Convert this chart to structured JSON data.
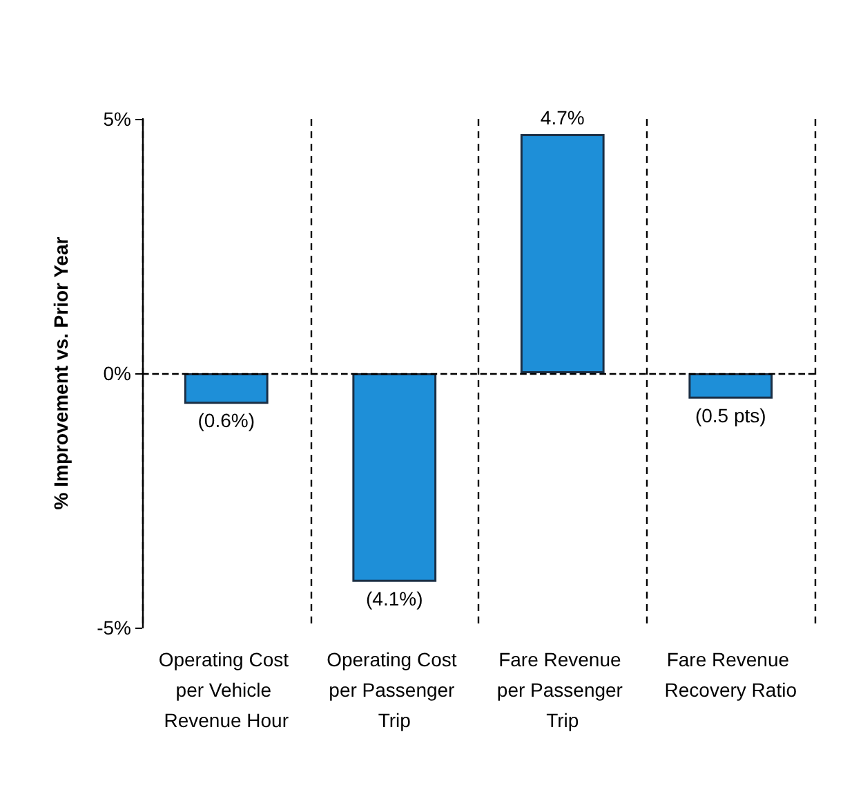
{
  "chart_data": {
    "type": "bar",
    "ylabel": "% Improvement vs. Prior Year",
    "categories": [
      "Operating Cost per Vehicle Revenue Hour",
      "Operating Cost per Passenger Trip",
      "Fare Revenue per Passenger Trip",
      "Fare Revenue Recovery Ratio"
    ],
    "values": [
      -0.6,
      -4.1,
      4.7,
      -0.5
    ],
    "value_labels": [
      "(0.6%)",
      "(4.1%)",
      "4.7%",
      "(0.5 pts)"
    ],
    "color": "#1e8fd8",
    "ylim": [
      -5,
      5
    ],
    "yticks": [
      {
        "value": -5,
        "label": "-5%"
      },
      {
        "value": 0,
        "label": "0%"
      },
      {
        "value": 5,
        "label": "5%"
      }
    ],
    "grid": "x",
    "ref_lines": [
      {
        "axis": "y",
        "value": 0,
        "line_style": "dashed",
        "color": "#000000"
      }
    ]
  }
}
